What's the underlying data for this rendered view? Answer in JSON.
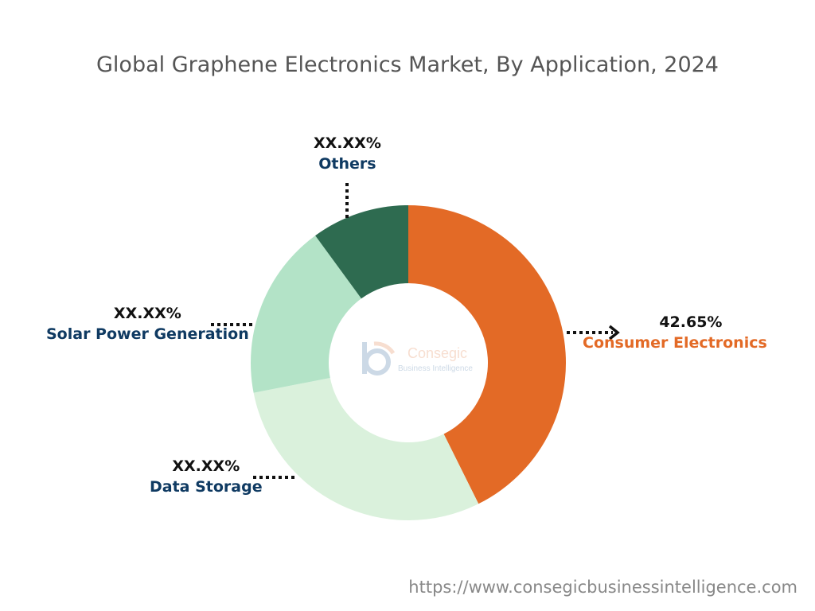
{
  "chart_data": {
    "type": "pie",
    "donut": true,
    "title": "Global Graphene Electronics Market, By Application, 2024",
    "categories": [
      "Consumer Electronics",
      "Data Storage",
      "Solar Power Generation",
      "Others"
    ],
    "values": [
      42.65,
      29.3,
      18.0,
      10.05
    ],
    "display_labels": [
      "42.65%",
      "XX.XX%",
      "XX.XX%",
      "XX.XX%"
    ],
    "colors": [
      "#E36A26",
      "#DAF1DC",
      "#B3E3C7",
      "#2E6B50"
    ],
    "label_colors": [
      "#E36A26",
      "#0F3A62",
      "#0F3A62",
      "#0F3A62"
    ]
  },
  "watermark": {
    "brand": "Consegic",
    "tagline": "Business Intelligence"
  },
  "footer_url": "https://www.consegicbusinessintelligence.com"
}
